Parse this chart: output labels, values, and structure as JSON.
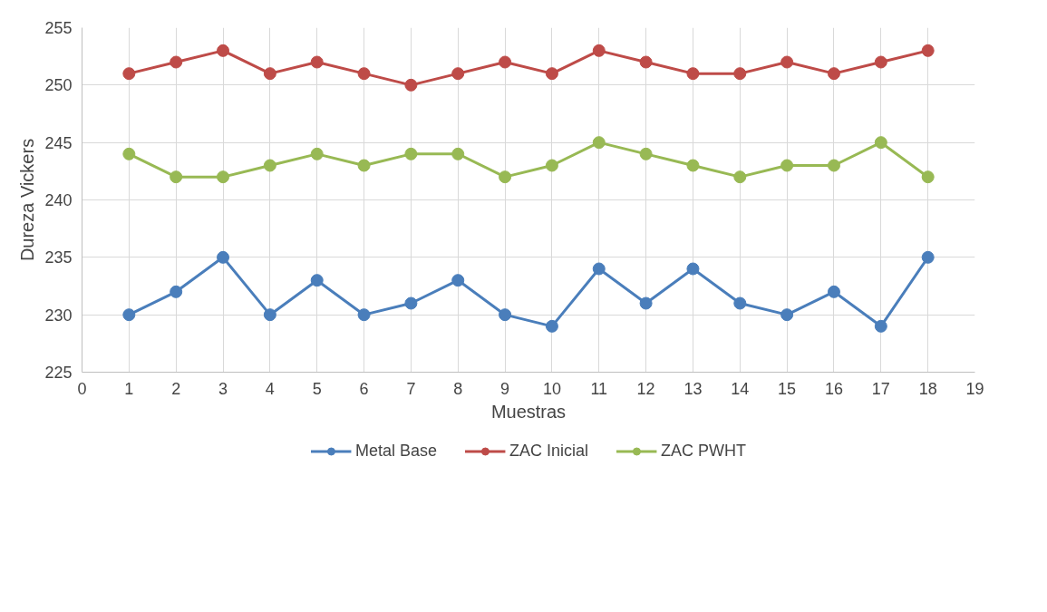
{
  "chart_data": {
    "type": "line",
    "xlabel": "Muestras",
    "ylabel": "Dureza Vickers",
    "x": [
      1,
      2,
      3,
      4,
      5,
      6,
      7,
      8,
      9,
      10,
      11,
      12,
      13,
      14,
      15,
      16,
      17,
      18
    ],
    "series": [
      {
        "name": "Metal Base",
        "color": "#4a7ebb",
        "values": [
          230,
          232,
          235,
          230,
          233,
          230,
          231,
          233,
          230,
          229,
          234,
          231,
          234,
          231,
          230,
          232,
          229,
          235
        ]
      },
      {
        "name": "ZAC Inicial",
        "color": "#be4b48",
        "values": [
          251,
          252,
          253,
          251,
          252,
          251,
          250,
          251,
          252,
          251,
          253,
          252,
          251,
          251,
          252,
          251,
          252,
          253
        ]
      },
      {
        "name": "ZAC PWHT",
        "color": "#98b954",
        "values": [
          244,
          242,
          242,
          243,
          244,
          243,
          244,
          244,
          242,
          243,
          245,
          244,
          243,
          242,
          243,
          243,
          245,
          242
        ]
      }
    ],
    "xlim": [
      0,
      19
    ],
    "xticks": [
      0,
      1,
      2,
      3,
      4,
      5,
      6,
      7,
      8,
      9,
      10,
      11,
      12,
      13,
      14,
      15,
      16,
      17,
      18,
      19
    ],
    "ylim": [
      225,
      255
    ],
    "yticks": [
      225,
      230,
      235,
      240,
      245,
      250,
      255
    ],
    "grid": true,
    "legend": "bottom",
    "marker": "circle",
    "line_style": "solid"
  }
}
